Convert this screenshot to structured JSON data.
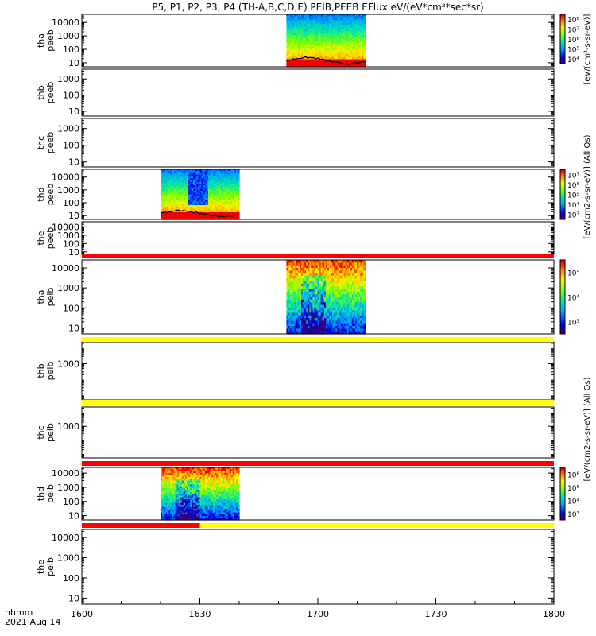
{
  "title": "P5, P1, P2, P3, P4 (TH-A,B,C,D,E) PEIB,PEEB EFlux eV/(eV*cm²*sec*sr)",
  "time_axis": {
    "label_line1": "hhmm",
    "label_line2": "2021 Aug 14",
    "ticks": [
      "1600",
      "1630",
      "1700",
      "1730",
      "1800"
    ],
    "range_minutes": [
      0,
      120
    ]
  },
  "colorbar_labels": {
    "top": "[eV/(cm²-s-sr-eV)]",
    "peeb": "[eV/(cm2-s-sr-eV)] (All Qs)",
    "peib": "[eV/(cm2-s-sr-eV)] (All Qs)"
  },
  "chart_data": {
    "type": "heatmap",
    "x_unit": "minutes after 16:00 UT",
    "y_scale": "log",
    "panels": [
      {
        "id": "tha-peeb",
        "ylabel": [
          "tha",
          "peeb"
        ],
        "ylim": [
          5,
          40000
        ],
        "yticks": [
          "10",
          "100",
          "1000",
          "10000"
        ],
        "data_x": [
          52,
          72
        ],
        "colorbar": {
          "ticks": [
            "10⁴",
            "10⁵",
            "10⁶",
            "10⁷",
            "10⁸"
          ]
        }
      },
      {
        "id": "thb-peeb",
        "ylabel": [
          "thb",
          "peeb"
        ],
        "ylim": [
          5,
          4000
        ],
        "yticks": [
          "10",
          "100",
          "1000"
        ],
        "data_x": null
      },
      {
        "id": "thc-peeb",
        "ylabel": [
          "thc",
          "peeb"
        ],
        "ylim": [
          5,
          4000
        ],
        "yticks": [
          "10",
          "100",
          "1000"
        ],
        "data_x": null
      },
      {
        "id": "thd-peeb",
        "ylabel": [
          "thd",
          "peeb"
        ],
        "ylim": [
          5,
          40000
        ],
        "yticks": [
          "10",
          "100",
          "1000",
          "10000"
        ],
        "data_x": [
          20,
          40
        ],
        "colorbar": {
          "ticks": [
            "10³",
            "10⁴",
            "10⁵",
            "10⁶",
            "10⁷"
          ]
        }
      },
      {
        "id": "the-peeb",
        "ylabel": [
          "the",
          "peeb"
        ],
        "ylim": [
          5,
          40000
        ],
        "yticks": [
          "10",
          "100",
          "1000",
          "10000"
        ],
        "data_x": null
      },
      {
        "id": "tha-peib",
        "ylabel": [
          "tha",
          "peib"
        ],
        "ylim": [
          5,
          25000
        ],
        "yticks": [
          "10",
          "100",
          "1000",
          "10000"
        ],
        "data_x": [
          52,
          72
        ],
        "colorbar": {
          "ticks": [
            "10³",
            "10⁴",
            "10⁵"
          ]
        }
      },
      {
        "id": "thb-peib",
        "ylabel": [
          "thb",
          "peib"
        ],
        "ylim": [
          5,
          25000
        ],
        "yticks": [
          "1000"
        ],
        "data_x": null
      },
      {
        "id": "thc-peib",
        "ylabel": [
          "thc",
          "peib"
        ],
        "ylim": [
          5,
          25000
        ],
        "yticks": [
          "1000"
        ],
        "data_x": null
      },
      {
        "id": "thd-peib",
        "ylabel": [
          "thd",
          "peib"
        ],
        "ylim": [
          5,
          25000
        ],
        "yticks": [
          "10",
          "100",
          "1000",
          "10000"
        ],
        "data_x": [
          20,
          40
        ],
        "colorbar": {
          "ticks": [
            "10³",
            "10⁴",
            "10⁵",
            "10⁶"
          ]
        }
      },
      {
        "id": "the-peib",
        "ylabel": [
          "the",
          "peib"
        ],
        "ylim": [
          5,
          25000
        ],
        "yticks": [
          "10",
          "100",
          "1000",
          "10000"
        ],
        "data_x": null
      }
    ],
    "status_bars": [
      {
        "between": "the-peeb/tha-peib",
        "segments": [
          {
            "x": [
              0,
              120
            ],
            "color": "#ff0000"
          }
        ]
      },
      {
        "between": "tha-peib/thb-peib",
        "segments": [
          {
            "x": [
              0,
              120
            ],
            "color": "#ffff00"
          }
        ]
      },
      {
        "between": "thb-peib/thc-peib",
        "segments": [
          {
            "x": [
              0,
              120
            ],
            "color": "#ffff00"
          }
        ]
      },
      {
        "between": "thc-peib/thd-peib",
        "segments": [
          {
            "x": [
              0,
              120
            ],
            "color": "#ff0000"
          }
        ]
      },
      {
        "between": "thd-peib/the-peib",
        "segments": [
          {
            "x": [
              0,
              30
            ],
            "color": "#ff0000"
          },
          {
            "x": [
              30,
              120
            ],
            "color": "#ffff00"
          }
        ]
      }
    ]
  }
}
